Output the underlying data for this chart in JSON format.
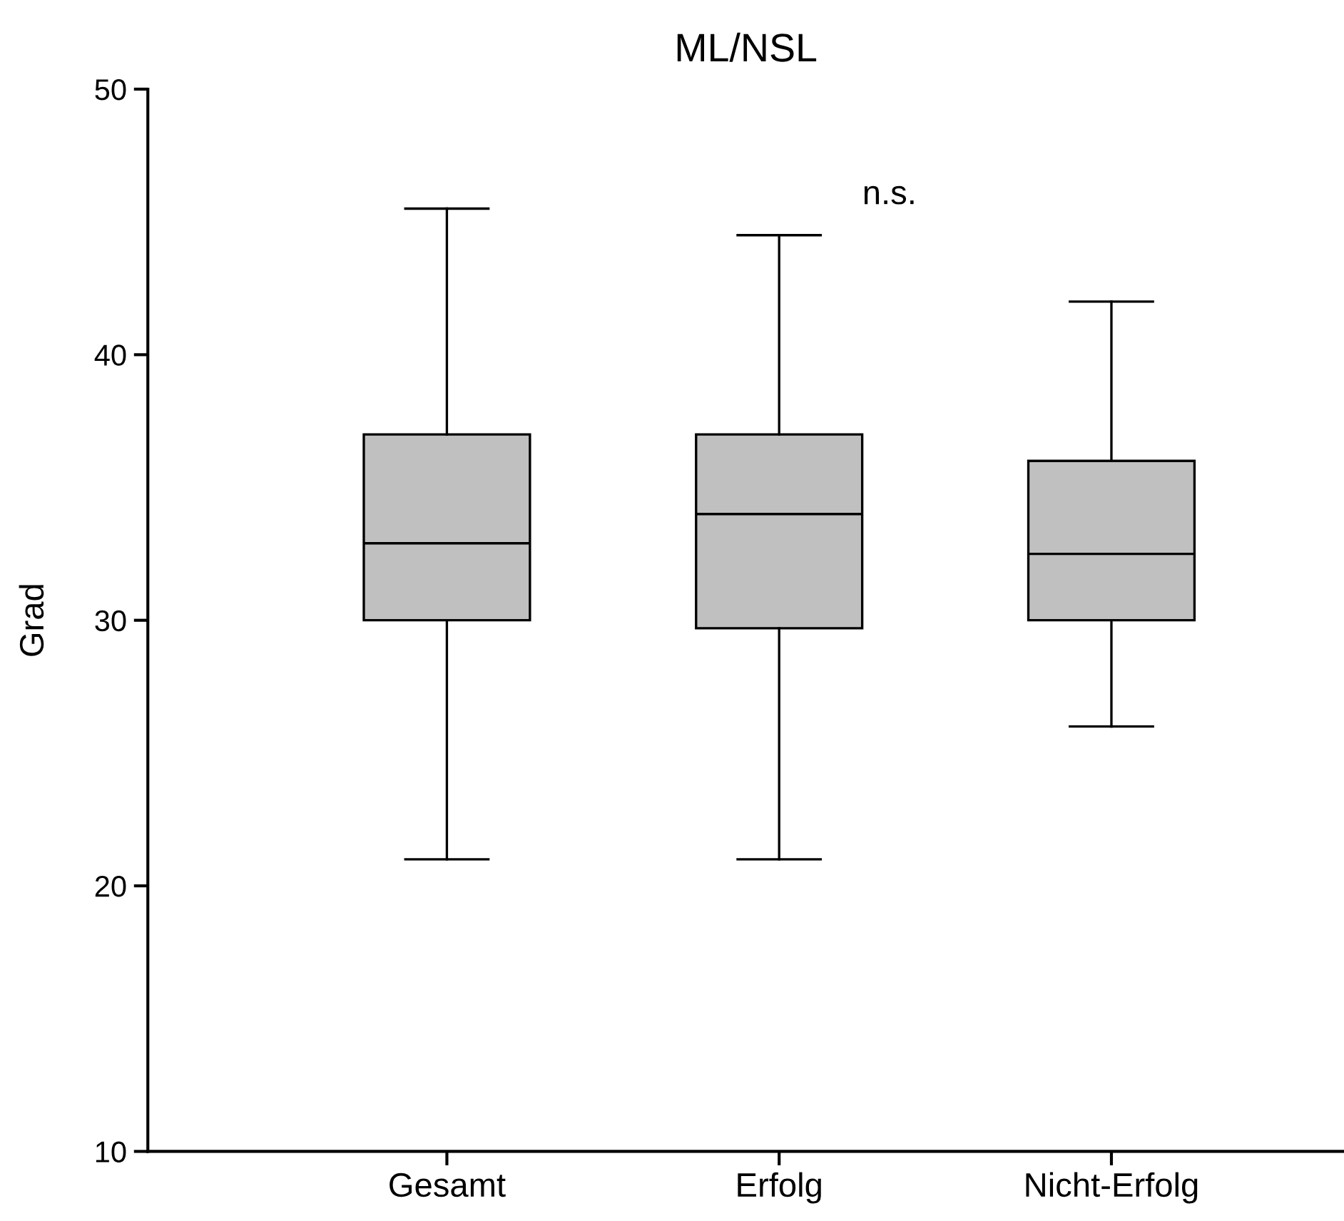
{
  "chart_data": {
    "type": "box",
    "title": "ML/NSL",
    "ylabel": "Grad",
    "categories": [
      "Gesamt",
      "Erfolg",
      "Nicht-Erfolg"
    ],
    "boxes": [
      {
        "low": 21,
        "q1": 30,
        "median": 32.9,
        "q3": 37,
        "high": 45.5
      },
      {
        "low": 21,
        "q1": 29.7,
        "median": 34,
        "q3": 37,
        "high": 44.5
      },
      {
        "low": 26,
        "q1": 30,
        "median": 32.5,
        "q3": 36,
        "high": 42
      }
    ],
    "color": "#c0c0c0",
    "ylim": [
      10,
      50
    ],
    "yticks": [
      10,
      20,
      30,
      40,
      50
    ],
    "grid": false,
    "annotations": [
      "n.s."
    ]
  }
}
